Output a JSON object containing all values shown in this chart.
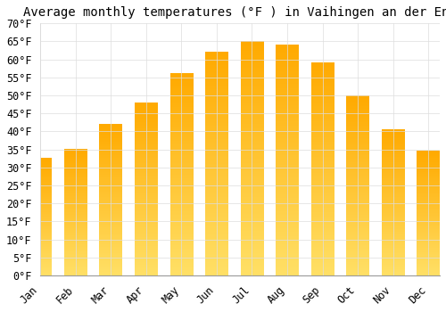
{
  "title": "Average monthly temperatures (°F ) in Vaihingen an der Enz",
  "months": [
    "Jan",
    "Feb",
    "Mar",
    "Apr",
    "May",
    "Jun",
    "Jul",
    "Aug",
    "Sep",
    "Oct",
    "Nov",
    "Dec"
  ],
  "values": [
    32.5,
    35.0,
    42.0,
    48.0,
    56.0,
    62.0,
    65.0,
    64.0,
    59.0,
    50.0,
    40.5,
    34.5
  ],
  "bar_color": "#FFA500",
  "bar_color_light": "#FFD700",
  "ylim": [
    0,
    70
  ],
  "yticks": [
    0,
    5,
    10,
    15,
    20,
    25,
    30,
    35,
    40,
    45,
    50,
    55,
    60,
    65,
    70
  ],
  "background_color": "#FFFFFF",
  "grid_color": "#DDDDDD",
  "title_fontsize": 10,
  "tick_fontsize": 8.5,
  "font_family": "monospace"
}
